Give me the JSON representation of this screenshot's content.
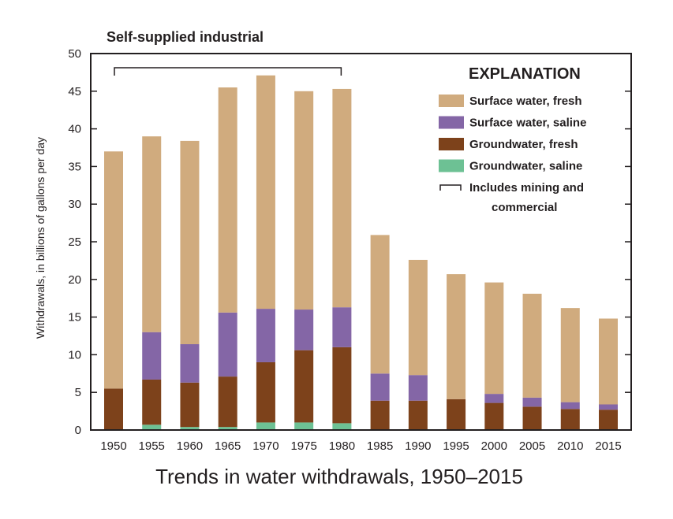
{
  "chart_data": {
    "type": "bar",
    "stacked": true,
    "title": "Self-supplied industrial",
    "caption": "Trends in water withdrawals, 1950–2015",
    "xlabel": "",
    "ylabel": "Withdrawals, in billions of gallons per day",
    "ylim": [
      0,
      50
    ],
    "yticks": [
      0,
      5,
      10,
      15,
      20,
      25,
      30,
      35,
      40,
      45,
      50
    ],
    "grid": false,
    "legend_title": "EXPLANATION",
    "legend_placement": "top-right",
    "categories": [
      "1950",
      "1955",
      "1960",
      "1965",
      "1970",
      "1975",
      "1980",
      "1985",
      "1990",
      "1995",
      "2000",
      "2005",
      "2010",
      "2015"
    ],
    "series": [
      {
        "name": "Groundwater, saline",
        "color": "#6dc194",
        "values": [
          0,
          0.7,
          0.4,
          0.4,
          1.0,
          1.0,
          0.9,
          0,
          0,
          0,
          0,
          0,
          0,
          0
        ]
      },
      {
        "name": "Groundwater, fresh",
        "color": "#7d421b",
        "values": [
          5.5,
          6.0,
          5.9,
          6.7,
          8.0,
          9.6,
          10.1,
          3.9,
          3.9,
          4.1,
          3.6,
          3.1,
          2.8,
          2.7
        ]
      },
      {
        "name": "Surface water, saline",
        "color": "#8466a6",
        "values": [
          0,
          6.3,
          5.1,
          8.5,
          7.1,
          5.4,
          5.3,
          3.6,
          3.4,
          0,
          1.2,
          1.2,
          0.9,
          0.7
        ]
      },
      {
        "name": "Surface water, fresh",
        "color": "#d0ab7e",
        "values": [
          31.5,
          26.0,
          27.0,
          29.9,
          31.0,
          29.0,
          29.0,
          18.4,
          15.3,
          16.6,
          14.8,
          13.8,
          12.5,
          11.4
        ]
      }
    ],
    "legend_order": [
      "Surface water, fresh",
      "Surface water, saline",
      "Groundwater, fresh",
      "Groundwater, saline"
    ],
    "bracket": {
      "label_line1": "Includes mining and",
      "label_line2": "commercial",
      "from": "1950",
      "to": "1980"
    }
  }
}
